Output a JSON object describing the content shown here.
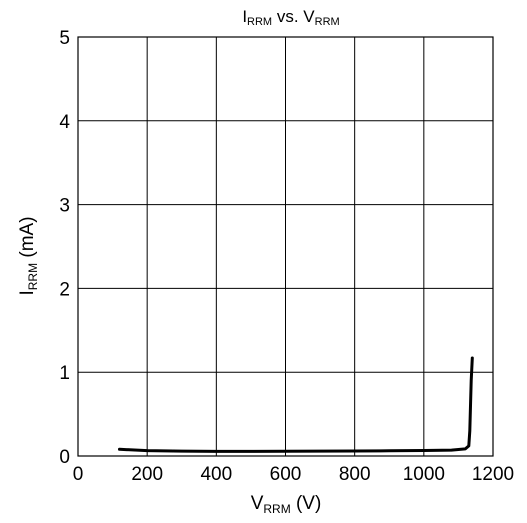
{
  "chart_data": {
    "type": "line",
    "title": {
      "main": "I",
      "sub": "RRM",
      "mid": " vs. V",
      "sub2": "RRM"
    },
    "xlabel": {
      "main": "V",
      "sub": "RRM",
      "rest": " (V)"
    },
    "ylabel": {
      "main": "I",
      "sub": "RRM",
      "rest": " (mA)"
    },
    "xlim": [
      0,
      1200
    ],
    "ylim": [
      0,
      5
    ],
    "xticks": [
      0,
      200,
      400,
      600,
      800,
      1000,
      1200
    ],
    "yticks": [
      0,
      1,
      2,
      3,
      4,
      5
    ],
    "xtick_labels": [
      "0",
      "200",
      "400",
      "600",
      "800",
      "1000",
      "1200"
    ],
    "ytick_labels": [
      "0",
      "1",
      "2",
      "3",
      "4",
      "5"
    ],
    "grid": true,
    "series": [
      {
        "color": "#000000",
        "x": [
          120,
          200,
          300,
          400,
          500,
          600,
          700,
          800,
          900,
          1000,
          1080,
          1120,
          1130,
          1133,
          1135,
          1137,
          1140
        ],
        "y": [
          0.08,
          0.065,
          0.058,
          0.055,
          0.055,
          0.056,
          0.058,
          0.06,
          0.062,
          0.066,
          0.07,
          0.085,
          0.12,
          0.3,
          0.6,
          0.9,
          1.17
        ]
      }
    ]
  }
}
